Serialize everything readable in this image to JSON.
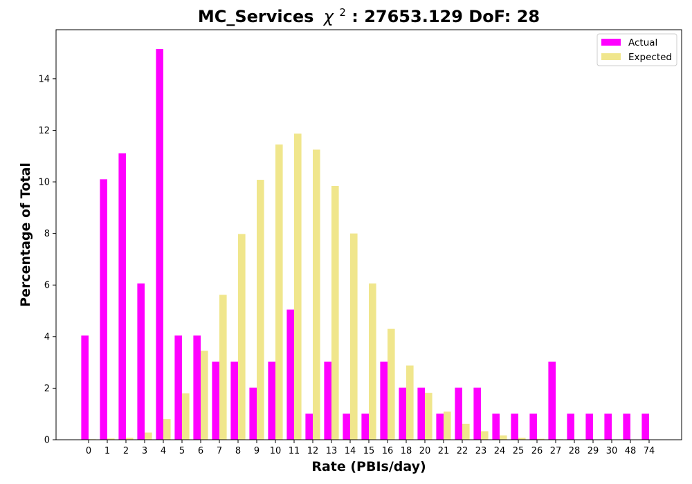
{
  "chart_data": {
    "type": "bar",
    "title": "MC_Services",
    "title_stat_prefix": "χ",
    "title_stat_sup": "2",
    "title_stat_suffix": ": 27653.129 DoF: 28",
    "xlabel": "Rate (PBIs/day)",
    "ylabel": "Percentage of Total",
    "categories": [
      "0",
      "1",
      "2",
      "3",
      "4",
      "5",
      "6",
      "7",
      "8",
      "9",
      "10",
      "11",
      "12",
      "13",
      "14",
      "15",
      "16",
      "18",
      "20",
      "21",
      "22",
      "23",
      "24",
      "25",
      "26",
      "27",
      "28",
      "29",
      "30",
      "48",
      "74"
    ],
    "series": [
      {
        "name": "Actual",
        "color": "#ff00ff",
        "values": [
          4.04,
          10.1,
          11.11,
          6.06,
          15.15,
          4.04,
          4.04,
          3.03,
          3.03,
          2.02,
          3.03,
          5.05,
          1.01,
          3.03,
          1.01,
          1.01,
          3.03,
          2.02,
          2.02,
          1.01,
          2.02,
          2.02,
          1.01,
          1.01,
          1.01,
          3.03,
          1.01,
          1.01,
          1.01,
          1.01,
          1.01
        ]
      },
      {
        "name": "Expected",
        "color": "#f0e68c",
        "values": [
          0.02,
          0.05,
          0.08,
          0.28,
          0.8,
          1.8,
          3.45,
          5.62,
          7.98,
          10.08,
          11.45,
          11.87,
          11.25,
          9.84,
          8.0,
          6.06,
          4.3,
          2.88,
          1.82,
          1.09,
          0.62,
          0.33,
          0.17,
          0.08,
          0.04,
          0.02,
          0.01,
          0.0,
          0.0,
          0.0,
          0.0
        ]
      }
    ],
    "ylim": [
      0,
      15.9
    ],
    "yticks": [
      0,
      2,
      4,
      6,
      8,
      10,
      12,
      14
    ],
    "legend_position": "top-right",
    "grid": false
  }
}
